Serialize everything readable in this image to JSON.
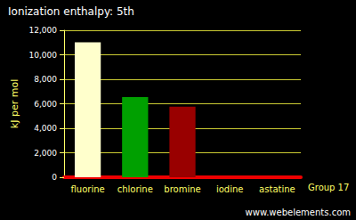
{
  "chart_data": {
    "type": "bar",
    "title": "Ionization enthalpy: 5th",
    "y_label": "kJ per mol",
    "x_label": "Group 17",
    "source": "www.webelements.com",
    "categories": [
      "fluorine",
      "chlorine",
      "bromine",
      "iodine",
      "astatine"
    ],
    "values": [
      11023,
      6542,
      5760,
      null,
      null
    ],
    "colors": [
      "#ffffcc",
      "#00a000",
      "#990000",
      "#6600aa",
      "#ffcc00"
    ],
    "ylim": [
      0,
      12000
    ],
    "yticks": [
      0,
      {
        "value": 2000,
        "label": "2,000"
      },
      {
        "value": 4000,
        "label": "4,000"
      },
      {
        "value": 6000,
        "label": "6,000"
      },
      {
        "value": 8000,
        "label": "8,000"
      },
      {
        "value": 10000,
        "label": "10,000"
      },
      {
        "value": 12000,
        "label": "12,000"
      }
    ],
    "grid": true
  }
}
